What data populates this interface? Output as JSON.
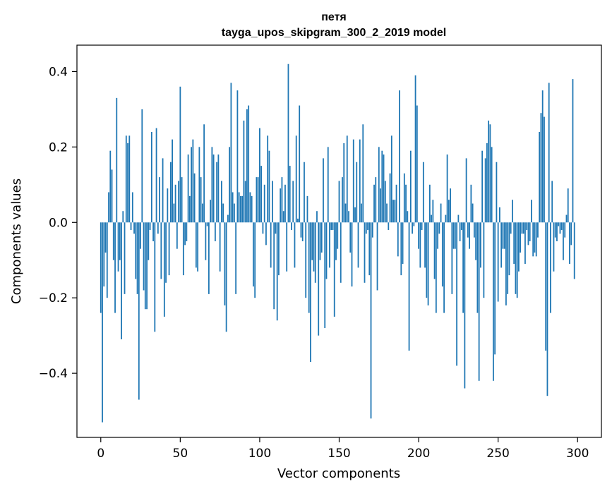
{
  "chart_data": {
    "type": "bar",
    "title": "петя",
    "subtitle": "tayga_upos_skipgram_300_2_2019 model",
    "xlabel": "Vector components",
    "ylabel": "Components values",
    "xlim": [
      -15,
      315
    ],
    "ylim": [
      -0.57,
      0.47
    ],
    "xticks": [
      0,
      50,
      100,
      150,
      200,
      250,
      300
    ],
    "xtick_labels": [
      "0",
      "50",
      "100",
      "150",
      "200",
      "250",
      "300"
    ],
    "yticks": [
      -0.4,
      -0.2,
      0.0,
      0.2,
      0.4
    ],
    "ytick_labels": [
      "−0.4",
      "−0.2",
      "0.0",
      "0.2",
      "0.4"
    ],
    "bar_color": "#1f77b4",
    "grid": false,
    "x": "0..299 (one bar per vector component)",
    "values": [
      -0.24,
      -0.53,
      -0.17,
      -0.08,
      -0.2,
      0.08,
      0.19,
      0.14,
      -0.1,
      -0.24,
      0.33,
      -0.13,
      -0.1,
      -0.31,
      0.03,
      -0.19,
      0.23,
      0.21,
      0.23,
      -0.02,
      0.08,
      -0.03,
      -0.15,
      -0.19,
      -0.47,
      -0.07,
      0.3,
      -0.18,
      -0.23,
      -0.23,
      -0.1,
      -0.02,
      0.24,
      -0.05,
      -0.29,
      0.25,
      -0.03,
      0.12,
      -0.15,
      0.17,
      -0.25,
      -0.16,
      0.09,
      -0.14,
      0.16,
      0.22,
      0.05,
      0.1,
      -0.07,
      0.11,
      0.36,
      0.12,
      -0.14,
      -0.06,
      -0.05,
      0.18,
      0.07,
      0.2,
      0.22,
      0.13,
      -0.12,
      -0.13,
      0.2,
      0.12,
      0.05,
      0.26,
      -0.1,
      -0.01,
      -0.19,
      0.06,
      0.2,
      0.18,
      -0.05,
      0.16,
      0.18,
      -0.13,
      0.11,
      0.05,
      -0.22,
      -0.29,
      0.02,
      0.2,
      0.37,
      0.08,
      0.05,
      -0.19,
      0.35,
      0.08,
      0.07,
      0.07,
      0.27,
      0.11,
      0.3,
      0.31,
      0.08,
      0.07,
      -0.17,
      -0.2,
      0.12,
      0.12,
      0.25,
      0.15,
      -0.03,
      0.1,
      -0.06,
      0.23,
      0.19,
      -0.12,
      0.11,
      -0.23,
      -0.03,
      -0.26,
      -0.14,
      0.09,
      0.12,
      0.03,
      0.1,
      -0.13,
      0.42,
      0.15,
      -0.02,
      0.11,
      -0.12,
      0.23,
      0.01,
      0.31,
      -0.04,
      -0.05,
      0.16,
      -0.2,
      0.07,
      -0.24,
      -0.37,
      -0.1,
      -0.13,
      -0.16,
      0.03,
      -0.3,
      -0.1,
      -0.08,
      0.17,
      -0.28,
      -0.15,
      0.2,
      -0.12,
      -0.02,
      -0.02,
      -0.25,
      -0.1,
      -0.07,
      0.11,
      -0.16,
      0.12,
      0.21,
      0.05,
      0.23,
      0.03,
      -0.08,
      -0.17,
      0.22,
      0.04,
      0.16,
      -0.12,
      0.22,
      0.05,
      0.26,
      -0.16,
      -0.03,
      -0.02,
      -0.14,
      -0.52,
      -0.04,
      0.1,
      0.12,
      -0.18,
      0.2,
      0.09,
      0.19,
      0.18,
      0.11,
      0.05,
      -0.02,
      0.13,
      0.23,
      0.06,
      0.06,
      0.1,
      -0.09,
      0.35,
      -0.14,
      -0.11,
      0.13,
      0.1,
      0.03,
      -0.34,
      0.19,
      -0.03,
      -0.01,
      0.39,
      0.31,
      -0.07,
      -0.12,
      -0.02,
      0.16,
      -0.12,
      -0.2,
      -0.22,
      0.1,
      0.02,
      0.06,
      -0.15,
      -0.24,
      -0.07,
      -0.03,
      0.05,
      -0.17,
      -0.24,
      0.02,
      0.18,
      0.06,
      0.09,
      -0.19,
      -0.07,
      -0.07,
      -0.38,
      0.02,
      -0.05,
      -0.02,
      -0.24,
      -0.44,
      0.17,
      -0.04,
      -0.07,
      0.1,
      0.05,
      -0.04,
      -0.1,
      -0.24,
      -0.42,
      -0.12,
      0.19,
      -0.2,
      0.17,
      0.21,
      0.27,
      0.26,
      0.2,
      -0.42,
      -0.35,
      0.16,
      -0.21,
      0.04,
      -0.12,
      -0.07,
      -0.07,
      -0.22,
      -0.19,
      -0.14,
      -0.03,
      0.06,
      -0.11,
      -0.19,
      -0.2,
      -0.13,
      -0.08,
      -0.03,
      -0.03,
      -0.11,
      -0.02,
      -0.06,
      -0.05,
      0.06,
      -0.09,
      -0.08,
      -0.09,
      -0.04,
      0.24,
      0.29,
      0.35,
      0.28,
      -0.34,
      -0.46,
      0.37,
      -0.24,
      0.11,
      -0.13,
      -0.04,
      -0.05,
      -0.01,
      -0.03,
      -0.02,
      -0.1,
      -0.04,
      0.02,
      0.09,
      -0.11,
      -0.06,
      0.38,
      -0.15
    ]
  }
}
